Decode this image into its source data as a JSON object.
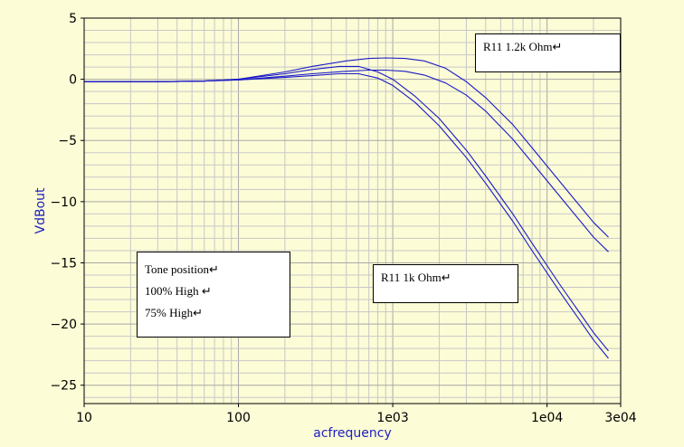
{
  "chart_data": {
    "type": "line",
    "title": "",
    "xlabel": "acfrequency",
    "ylabel": "VdBout",
    "xscale": "log",
    "xlim": [
      10,
      30000
    ],
    "ylim": [
      -26.5,
      5
    ],
    "grid": true,
    "x_tick_labels": [
      {
        "value": 10,
        "label": "10"
      },
      {
        "value": 100,
        "label": "100"
      },
      {
        "value": 1000,
        "label": "1e03"
      },
      {
        "value": 10000,
        "label": "1e04"
      },
      {
        "value": 30000,
        "label": "3e04"
      }
    ],
    "y_ticks": [
      5,
      0,
      -5,
      -10,
      -15,
      -20,
      -25
    ],
    "y_tick_labels": [
      "5",
      "0",
      "−5",
      "−10",
      "−15",
      "−20",
      "−25"
    ],
    "line_color": "#1a1ac8",
    "series": [
      {
        "x": [
          10,
          30,
          60,
          100,
          200,
          300,
          500,
          700,
          900,
          1200,
          1600,
          2200,
          3000,
          4000,
          6000,
          8000,
          12000,
          20000,
          25000
        ],
        "y": [
          -0.2,
          -0.2,
          -0.15,
          0,
          0.6,
          1.05,
          1.5,
          1.7,
          1.75,
          1.7,
          1.5,
          0.9,
          -0.2,
          -1.5,
          -3.7,
          -5.6,
          -8.3,
          -11.7,
          -12.9
        ]
      },
      {
        "x": [
          10,
          30,
          60,
          100,
          200,
          300,
          500,
          700,
          900,
          1200,
          1600,
          2200,
          3000,
          4000,
          6000,
          8000,
          12000,
          20000,
          25000
        ],
        "y": [
          -0.2,
          -0.2,
          -0.15,
          -0.05,
          0.25,
          0.45,
          0.65,
          0.75,
          0.75,
          0.65,
          0.35,
          -0.3,
          -1.3,
          -2.6,
          -4.9,
          -6.8,
          -9.5,
          -12.9,
          -14.1
        ]
      },
      {
        "x": [
          10,
          30,
          60,
          100,
          200,
          300,
          450,
          600,
          800,
          1000,
          1400,
          2000,
          3000,
          4000,
          6000,
          8000,
          12000,
          20000,
          25000
        ],
        "y": [
          -0.2,
          -0.2,
          -0.15,
          0,
          0.45,
          0.8,
          1.05,
          1.05,
          0.6,
          0.0,
          -1.4,
          -3.2,
          -5.8,
          -7.9,
          -11.0,
          -13.4,
          -16.7,
          -20.7,
          -22.2
        ]
      },
      {
        "x": [
          10,
          30,
          60,
          100,
          200,
          300,
          450,
          600,
          800,
          1000,
          1400,
          2000,
          3000,
          4000,
          6000,
          8000,
          12000,
          20000,
          25000
        ],
        "y": [
          -0.2,
          -0.2,
          -0.15,
          -0.05,
          0.15,
          0.3,
          0.45,
          0.45,
          0.1,
          -0.5,
          -1.9,
          -3.8,
          -6.4,
          -8.5,
          -11.6,
          -14.0,
          -17.3,
          -21.3,
          -22.8
        ]
      }
    ]
  },
  "annotations": {
    "r11_high": "R11 1.2k Ohm↵",
    "r11_low": "R11 1k Ohm↵",
    "tone_title": "Tone position↵",
    "tone_100": "100% High ↵",
    "tone_75": "75% High↵"
  }
}
